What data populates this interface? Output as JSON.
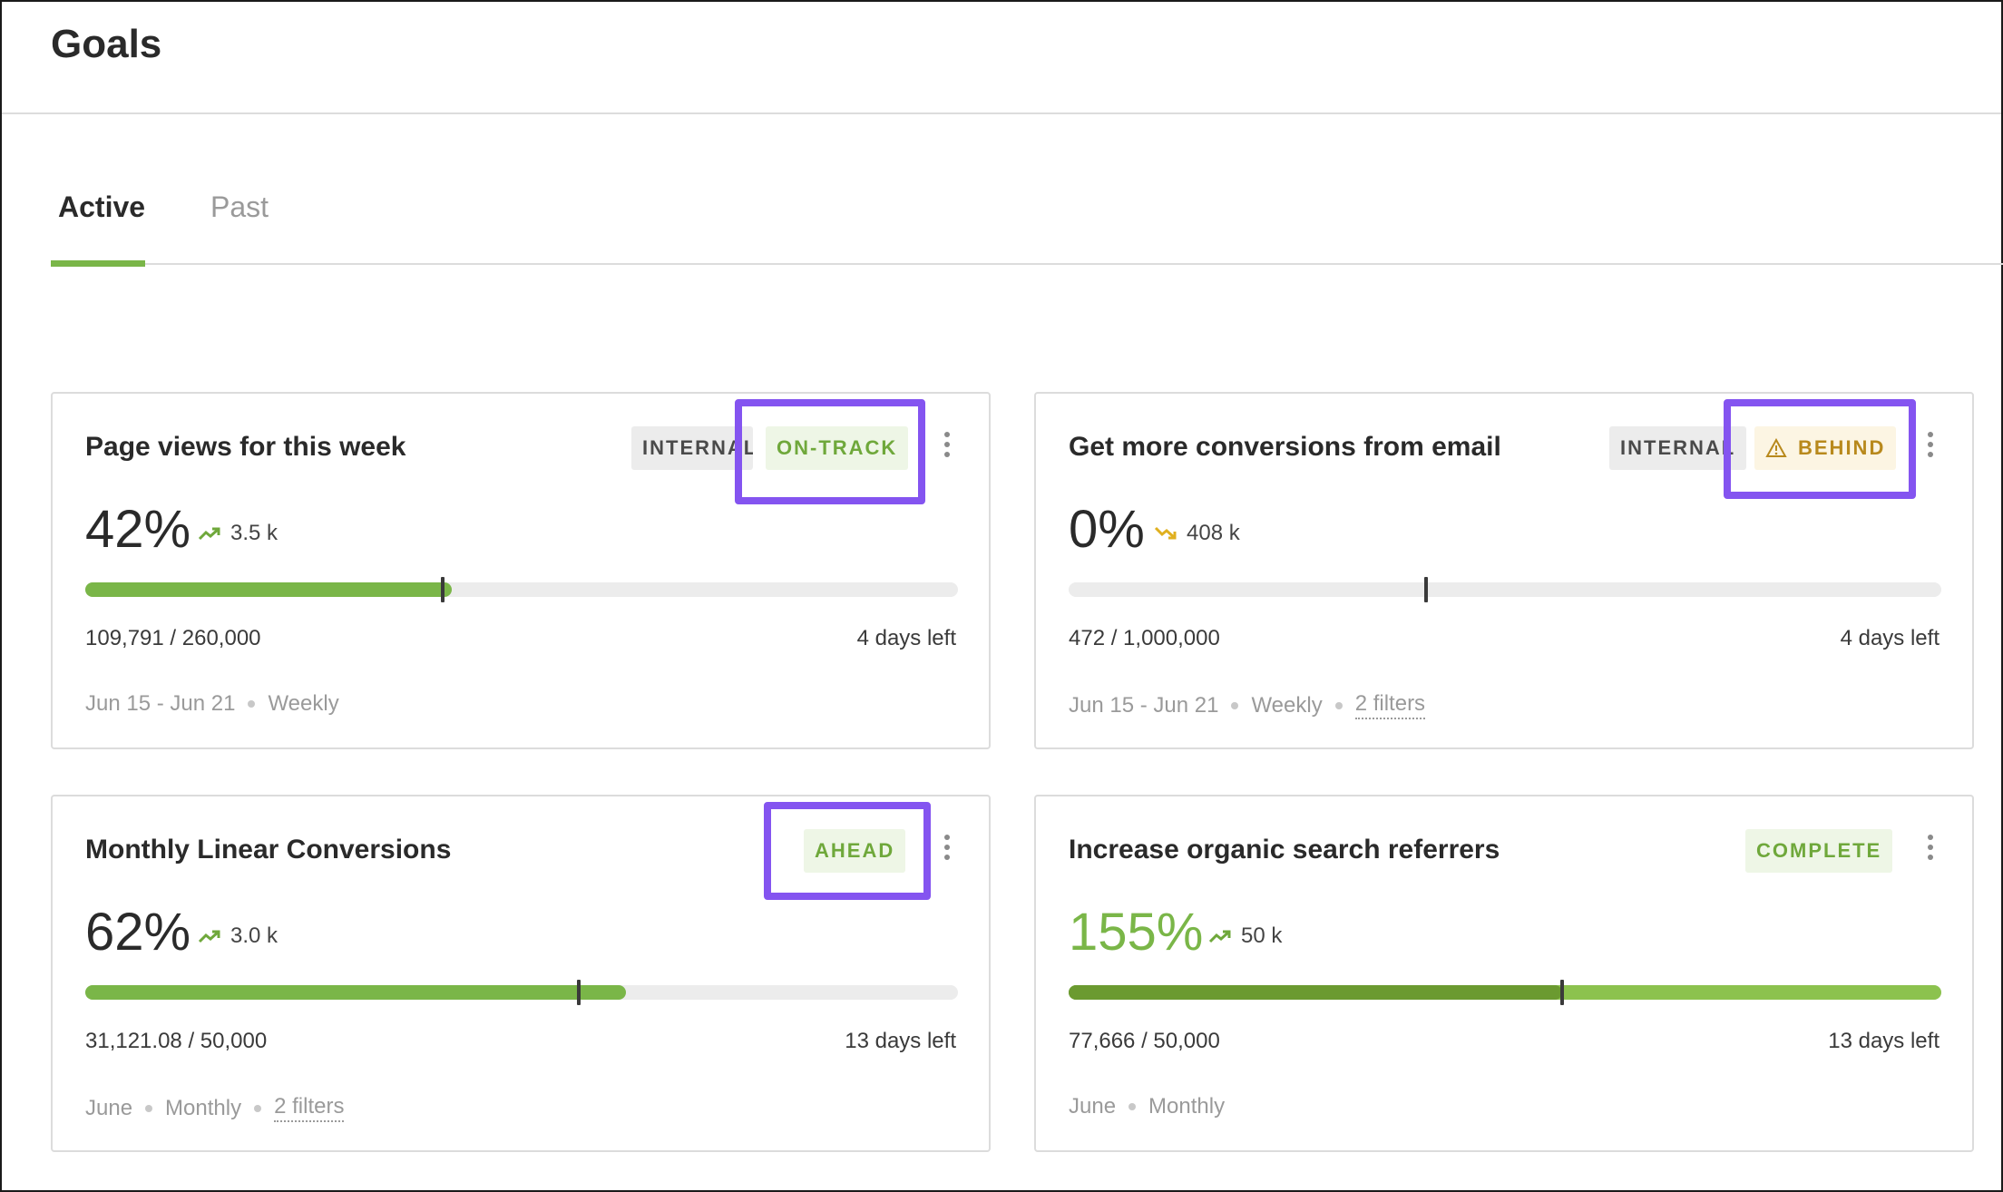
{
  "header": {
    "title": "Goals"
  },
  "tabs": [
    {
      "label": "Active",
      "active": true
    },
    {
      "label": "Past",
      "active": false
    }
  ],
  "colors": {
    "accent": "#7ab648",
    "highlight": "#8454f0",
    "behind": "#b8891c"
  },
  "cards": [
    {
      "title": "Page views for this week",
      "tags": [
        "INTERNAL"
      ],
      "status": "ON-TRACK",
      "percent": "42%",
      "trend_icon": "trending-up-icon",
      "trend_value": "3.5 k",
      "progress_fraction": 0.42,
      "target_fraction": 0.41,
      "progress_text": "109,791 / 260,000",
      "days_left": "4 days left",
      "date_range": "Jun 15 - Jun 21",
      "period": "Weekly",
      "filters": ""
    },
    {
      "title": "Get more conversions from email",
      "tags": [
        "INTERNAL"
      ],
      "status": "BEHIND",
      "status_icon": "warning-icon",
      "percent": "0%",
      "trend_icon": "trending-down-icon",
      "trend_value": "408 k",
      "progress_fraction": 0.0,
      "target_fraction": 0.41,
      "progress_text": "472 / 1,000,000",
      "days_left": "4 days left",
      "date_range": "Jun 15 - Jun 21",
      "period": "Weekly",
      "filters": "2 filters"
    },
    {
      "title": "Monthly Linear Conversions",
      "tags": [],
      "status": "AHEAD",
      "percent": "62%",
      "trend_icon": "trending-up-icon",
      "trend_value": "3.0 k",
      "progress_fraction": 0.62,
      "target_fraction": 0.565,
      "progress_text": "31,121.08 / 50,000",
      "days_left": "13 days left",
      "date_range": "June",
      "period": "Monthly",
      "filters": "2 filters"
    },
    {
      "title": "Increase organic search referrers",
      "tags": [],
      "status": "COMPLETE",
      "percent": "155%",
      "trend_icon": "trending-up-icon",
      "trend_value": "50 k",
      "progress_fraction": 1.0,
      "target_fraction": 0.565,
      "progress_text": "77,666 / 50,000",
      "days_left": "13 days left",
      "date_range": "June",
      "period": "Monthly",
      "filters": ""
    }
  ]
}
